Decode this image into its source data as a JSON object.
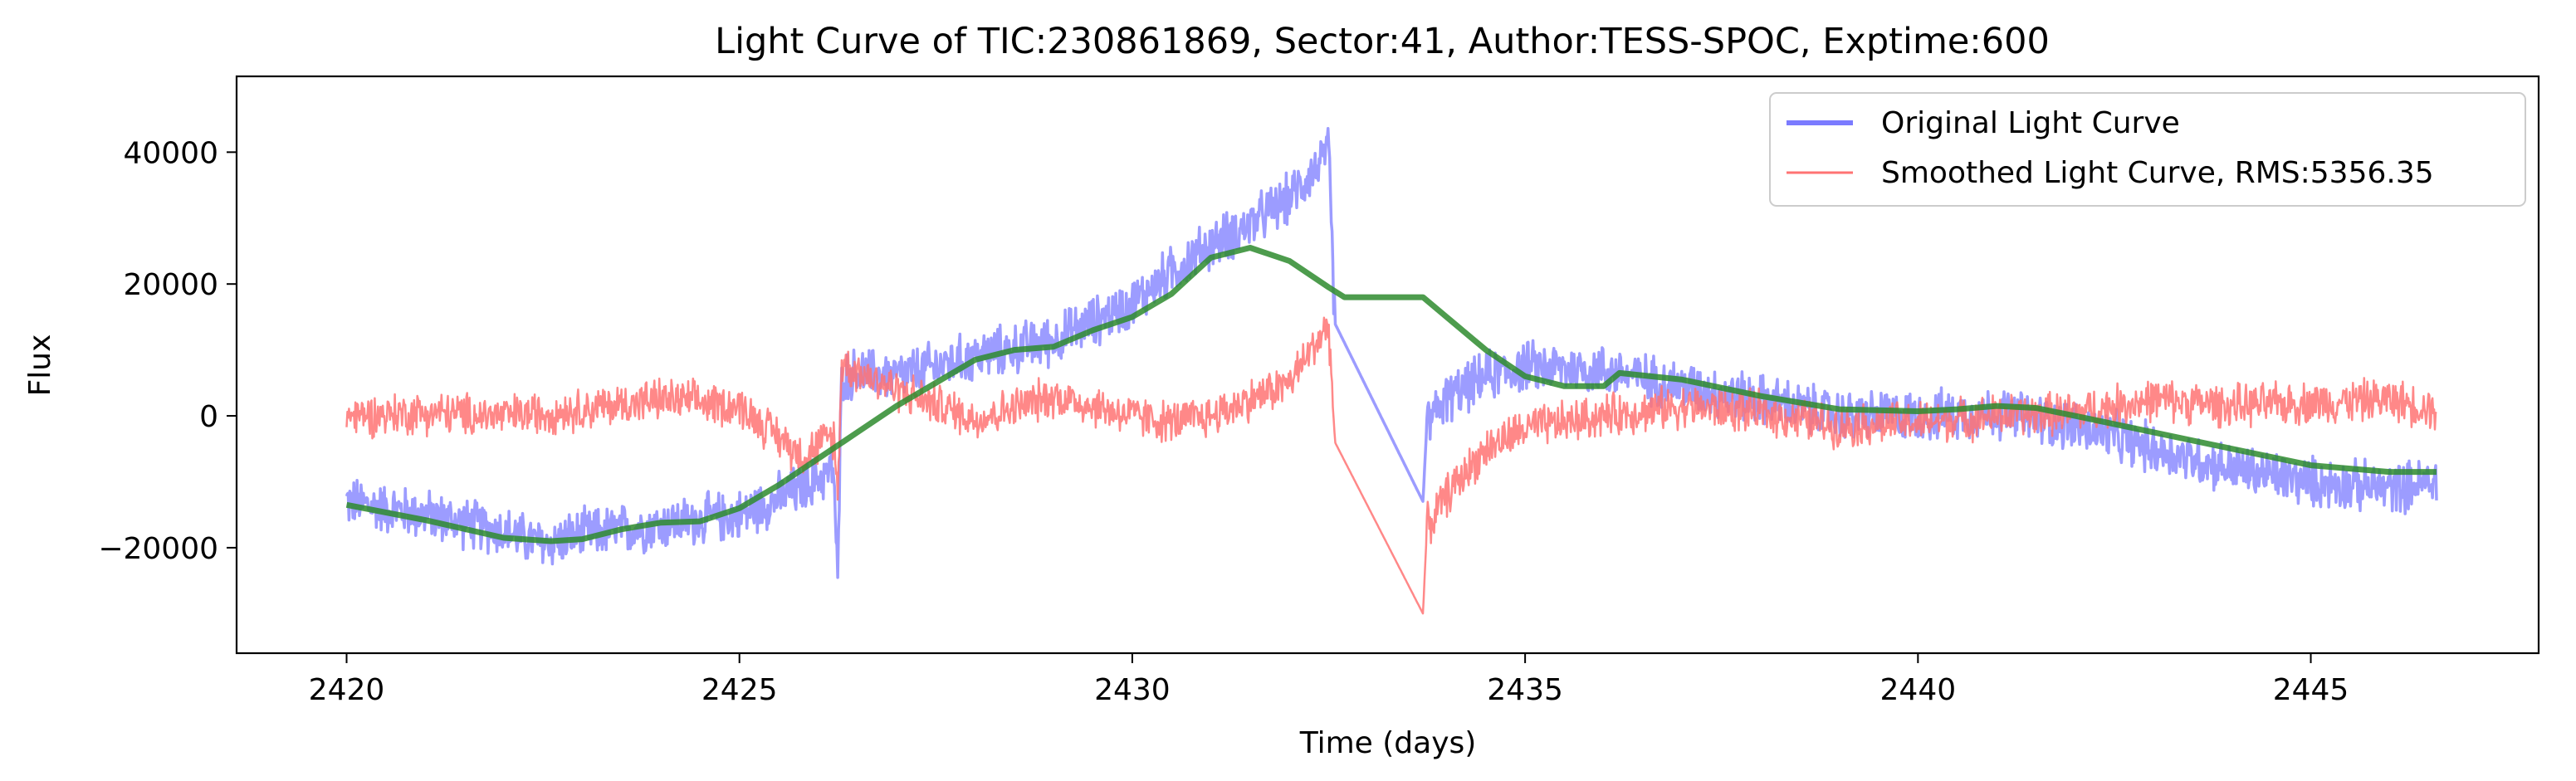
{
  "chart_data": {
    "type": "line",
    "title": "Light Curve of TIC:230861869, Sector:41, Author:TESS-SPOC, Exptime:600",
    "xlabel": "Time (days)",
    "ylabel": "Flux",
    "xlim": [
      2418.6,
      2447.9
    ],
    "ylim": [
      -36000,
      51500
    ],
    "xticks": [
      2420,
      2425,
      2430,
      2435,
      2440,
      2445
    ],
    "yticks": [
      -20000,
      0,
      20000,
      40000
    ],
    "xtick_labels": [
      "2420",
      "2425",
      "2430",
      "2435",
      "2440",
      "2445"
    ],
    "ytick_labels": [
      "−20000",
      "0",
      "20000",
      "40000"
    ],
    "grid": false,
    "legend_position": "top-right",
    "legend": [
      {
        "label": "Original Light Curve",
        "color": "#7b7bff"
      },
      {
        "label": "Smoothed Light Curve, RMS:5356.35",
        "color": "#ff7373"
      }
    ],
    "series": [
      {
        "name": "Original Light Curve",
        "color": "#7b7bff",
        "noise_amplitude": 4500,
        "points": [
          [
            2420.0,
            -13000
          ],
          [
            2421.0,
            -15000
          ],
          [
            2422.0,
            -17500
          ],
          [
            2422.5,
            -19500
          ],
          [
            2423.0,
            -18000
          ],
          [
            2424.0,
            -16500
          ],
          [
            2425.0,
            -15000
          ],
          [
            2425.8,
            -11000
          ],
          [
            2426.2,
            -8000
          ],
          [
            2426.25,
            -26000
          ],
          [
            2426.3,
            6000
          ],
          [
            2426.5,
            6500
          ],
          [
            2427.0,
            6000
          ],
          [
            2428.0,
            9000
          ],
          [
            2429.0,
            11500
          ],
          [
            2430.0,
            17000
          ],
          [
            2430.5,
            22000
          ],
          [
            2431.0,
            26000
          ],
          [
            2431.5,
            29000
          ],
          [
            2432.0,
            33000
          ],
          [
            2432.5,
            40000
          ],
          [
            2432.58,
            14000
          ],
          [
            2433.7,
            -13000
          ],
          [
            2433.75,
            -1000
          ],
          [
            2434.0,
            2500
          ],
          [
            2434.5,
            6000
          ],
          [
            2435.0,
            7500
          ],
          [
            2436.0,
            7000
          ],
          [
            2437.0,
            4500
          ],
          [
            2438.0,
            2500
          ],
          [
            2439.0,
            0
          ],
          [
            2440.0,
            0
          ],
          [
            2441.0,
            500
          ],
          [
            2442.0,
            -1500
          ],
          [
            2443.0,
            -5000
          ],
          [
            2444.0,
            -8000
          ],
          [
            2445.0,
            -10000
          ],
          [
            2446.0,
            -11000
          ],
          [
            2446.6,
            -10000
          ]
        ]
      },
      {
        "name": "Smoothed Light Curve, RMS:5356.35",
        "color": "#ff7373",
        "noise_amplitude": 3800,
        "points": [
          [
            2420.0,
            0
          ],
          [
            2421.0,
            500
          ],
          [
            2422.0,
            0
          ],
          [
            2423.0,
            1000
          ],
          [
            2424.0,
            2500
          ],
          [
            2425.0,
            1500
          ],
          [
            2425.8,
            -6000
          ],
          [
            2426.2,
            -3000
          ],
          [
            2426.25,
            -12000
          ],
          [
            2426.3,
            8000
          ],
          [
            2427.0,
            4000
          ],
          [
            2428.0,
            -500
          ],
          [
            2429.0,
            3000
          ],
          [
            2430.0,
            0
          ],
          [
            2430.5,
            -1000
          ],
          [
            2431.0,
            0
          ],
          [
            2432.0,
            5000
          ],
          [
            2432.5,
            14000
          ],
          [
            2432.58,
            -4000
          ],
          [
            2433.7,
            -30000
          ],
          [
            2433.75,
            -17000
          ],
          [
            2434.0,
            -12000
          ],
          [
            2434.5,
            -5000
          ],
          [
            2435.0,
            -2000
          ],
          [
            2436.0,
            0
          ],
          [
            2437.0,
            1500
          ],
          [
            2438.0,
            500
          ],
          [
            2439.0,
            -1500
          ],
          [
            2440.0,
            -1000
          ],
          [
            2441.0,
            0
          ],
          [
            2442.0,
            500
          ],
          [
            2443.0,
            2500
          ],
          [
            2444.0,
            1500
          ],
          [
            2445.0,
            2000
          ],
          [
            2446.0,
            2500
          ],
          [
            2446.6,
            1000
          ]
        ]
      },
      {
        "name": "",
        "color": "#2e8b2e",
        "noise_amplitude": 0,
        "points": [
          [
            2420.0,
            -13500
          ],
          [
            2421.0,
            -15800
          ],
          [
            2422.0,
            -18500
          ],
          [
            2422.6,
            -19000
          ],
          [
            2423.0,
            -18700
          ],
          [
            2423.5,
            -17200
          ],
          [
            2424.0,
            -16200
          ],
          [
            2424.5,
            -16000
          ],
          [
            2425.0,
            -14000
          ],
          [
            2425.5,
            -10500
          ],
          [
            2426.0,
            -6500
          ],
          [
            2426.5,
            -2500
          ],
          [
            2427.0,
            1500
          ],
          [
            2427.5,
            5000
          ],
          [
            2428.0,
            8500
          ],
          [
            2428.5,
            10000
          ],
          [
            2429.0,
            10500
          ],
          [
            2429.5,
            13000
          ],
          [
            2430.0,
            15000
          ],
          [
            2430.5,
            18500
          ],
          [
            2431.0,
            24000
          ],
          [
            2431.5,
            25500
          ],
          [
            2432.0,
            23500
          ],
          [
            2432.5,
            19500
          ],
          [
            2432.7,
            18000
          ],
          [
            2433.7,
            18000
          ],
          [
            2434.0,
            15000
          ],
          [
            2434.5,
            10000
          ],
          [
            2435.0,
            6000
          ],
          [
            2435.5,
            4500
          ],
          [
            2436.0,
            4500
          ],
          [
            2436.2,
            6500
          ],
          [
            2437.0,
            5500
          ],
          [
            2438.0,
            3000
          ],
          [
            2439.0,
            1000
          ],
          [
            2440.0,
            700
          ],
          [
            2440.5,
            1000
          ],
          [
            2441.0,
            1500
          ],
          [
            2441.5,
            1200
          ],
          [
            2442.0,
            0
          ],
          [
            2443.0,
            -2500
          ],
          [
            2444.0,
            -5000
          ],
          [
            2445.0,
            -7500
          ],
          [
            2446.0,
            -8500
          ],
          [
            2446.6,
            -8500
          ]
        ]
      }
    ]
  }
}
